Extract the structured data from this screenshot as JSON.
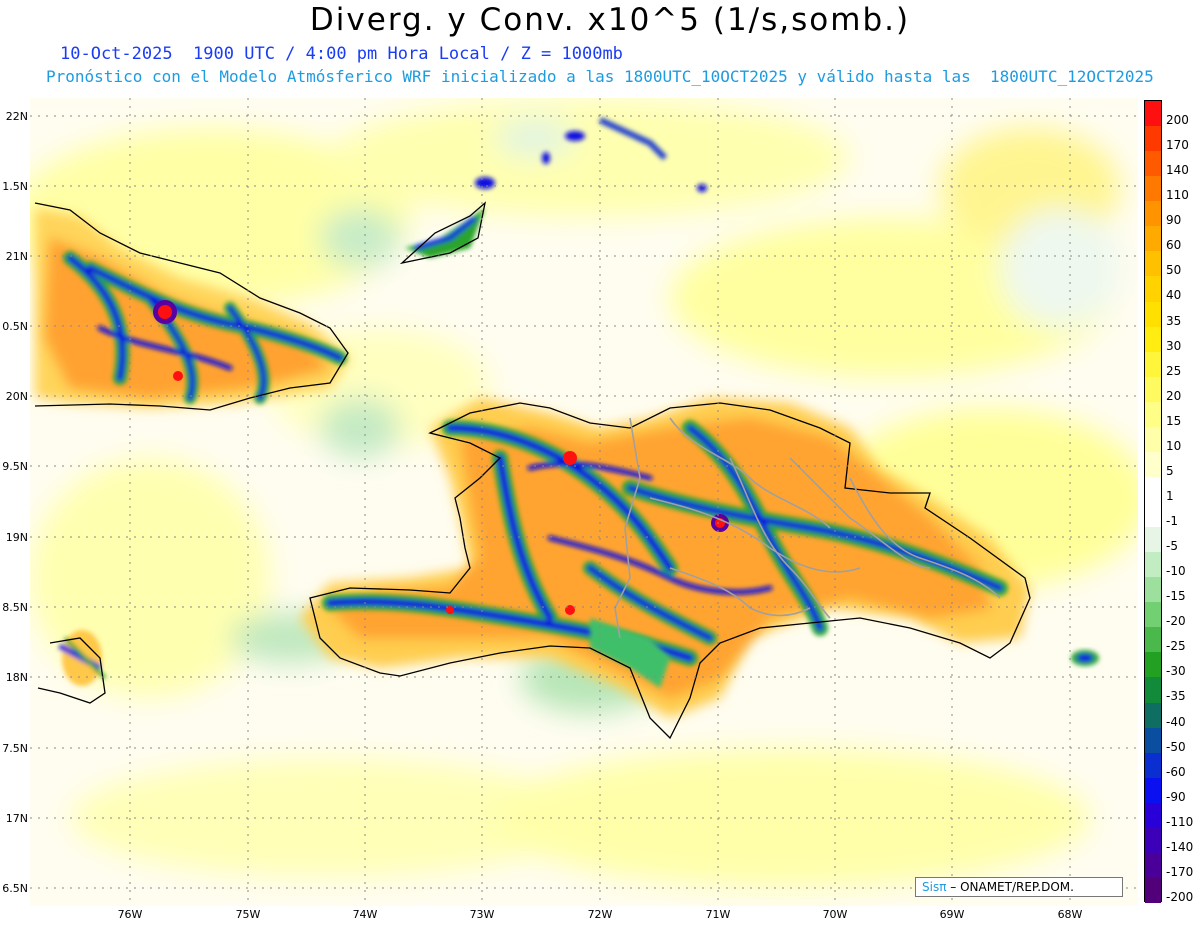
{
  "title": "Diverg. y Conv. x10^5 (1/s,somb.)",
  "subtitle_line1": "10-Oct-2025  1900 UTC / 4:00 pm Hora Local / Z = 1000mb",
  "subtitle_line2": "Pronóstico con el Modelo Atmósferico WRF inicializado a las 1800UTC_10OCT2025 y válido hasta las  1800UTC_12OCT2025",
  "lat_labels": [
    "22N",
    "1.5N",
    "21N",
    "0.5N",
    "20N",
    "9.5N",
    "19N",
    "8.5N",
    "18N",
    "7.5N",
    "17N",
    "6.5N"
  ],
  "lon_labels": [
    "76W",
    "75W",
    "74W",
    "73W",
    "72W",
    "71W",
    "70W",
    "69W",
    "68W"
  ],
  "colorbar": {
    "labels": [
      "200",
      "170",
      "140",
      "110",
      "90",
      "60",
      "50",
      "40",
      "35",
      "30",
      "25",
      "20",
      "15",
      "10",
      "5",
      "1",
      "-1",
      "-5",
      "-10",
      "-15",
      "-20",
      "-25",
      "-30",
      "-35",
      "-40",
      "-50",
      "-60",
      "-90",
      "-110",
      "-140",
      "-170",
      "-200"
    ],
    "colors": [
      "#ff1010",
      "#ff3a00",
      "#ff5a00",
      "#ff7800",
      "#ff9400",
      "#ffaa00",
      "#ffc000",
      "#ffd200",
      "#ffe000",
      "#ffec10",
      "#fff53a",
      "#fffa60",
      "#ffff88",
      "#ffffaa",
      "#ffffcc",
      "#ffffff",
      "#ffffff",
      "#e6f5e6",
      "#c2ecc2",
      "#9ddf9d",
      "#72cf72",
      "#4ab84a",
      "#22a022",
      "#118a3a",
      "#0f6e62",
      "#0a4ea0",
      "#0a2ed0",
      "#0a10f0",
      "#2a00d8",
      "#3c00b8",
      "#4a0098",
      "#52007a"
    ]
  },
  "credit": {
    "brand": "Sisπ",
    "text": " – ONAMET/REP.DOM."
  }
}
